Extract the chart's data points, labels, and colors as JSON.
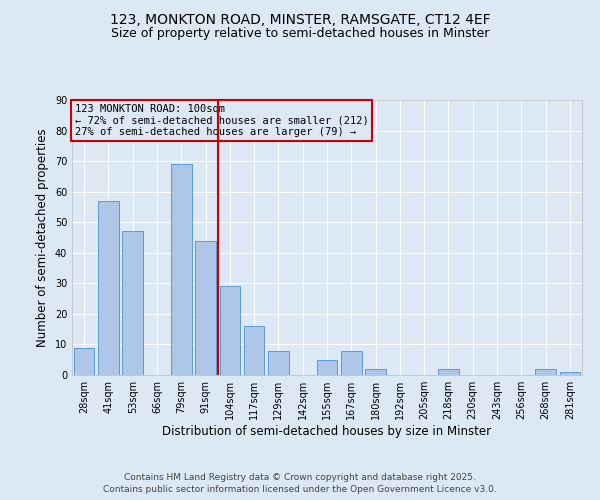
{
  "title": "123, MONKTON ROAD, MINSTER, RAMSGATE, CT12 4EF",
  "subtitle": "Size of property relative to semi-detached houses in Minster",
  "xlabel": "Distribution of semi-detached houses by size in Minster",
  "ylabel": "Number of semi-detached properties",
  "categories": [
    "28sqm",
    "41sqm",
    "53sqm",
    "66sqm",
    "79sqm",
    "91sqm",
    "104sqm",
    "117sqm",
    "129sqm",
    "142sqm",
    "155sqm",
    "167sqm",
    "180sqm",
    "192sqm",
    "205sqm",
    "218sqm",
    "230sqm",
    "243sqm",
    "256sqm",
    "268sqm",
    "281sqm"
  ],
  "values": [
    9,
    57,
    47,
    0,
    69,
    44,
    29,
    16,
    8,
    0,
    5,
    8,
    2,
    0,
    0,
    2,
    0,
    0,
    0,
    2,
    1
  ],
  "bar_color": "#aec6e8",
  "bar_edge_color": "#5b9bd5",
  "vline_x_index": 6,
  "vline_color": "#cc0000",
  "annotation_title": "123 MONKTON ROAD: 100sqm",
  "annotation_line1": "← 72% of semi-detached houses are smaller (212)",
  "annotation_line2": "27% of semi-detached houses are larger (79) →",
  "annotation_box_color": "#cc0000",
  "ylim": [
    0,
    90
  ],
  "yticks": [
    0,
    10,
    20,
    30,
    40,
    50,
    60,
    70,
    80,
    90
  ],
  "footer1": "Contains HM Land Registry data © Crown copyright and database right 2025.",
  "footer2": "Contains public sector information licensed under the Open Government Licence v3.0.",
  "bg_color": "#dce9f5",
  "plot_bg_color": "#dce9f5",
  "grid_color": "#ffffff",
  "title_fontsize": 10,
  "subtitle_fontsize": 9,
  "axis_label_fontsize": 8.5,
  "tick_fontsize": 7,
  "annotation_fontsize": 7.5,
  "footer_fontsize": 6.5
}
